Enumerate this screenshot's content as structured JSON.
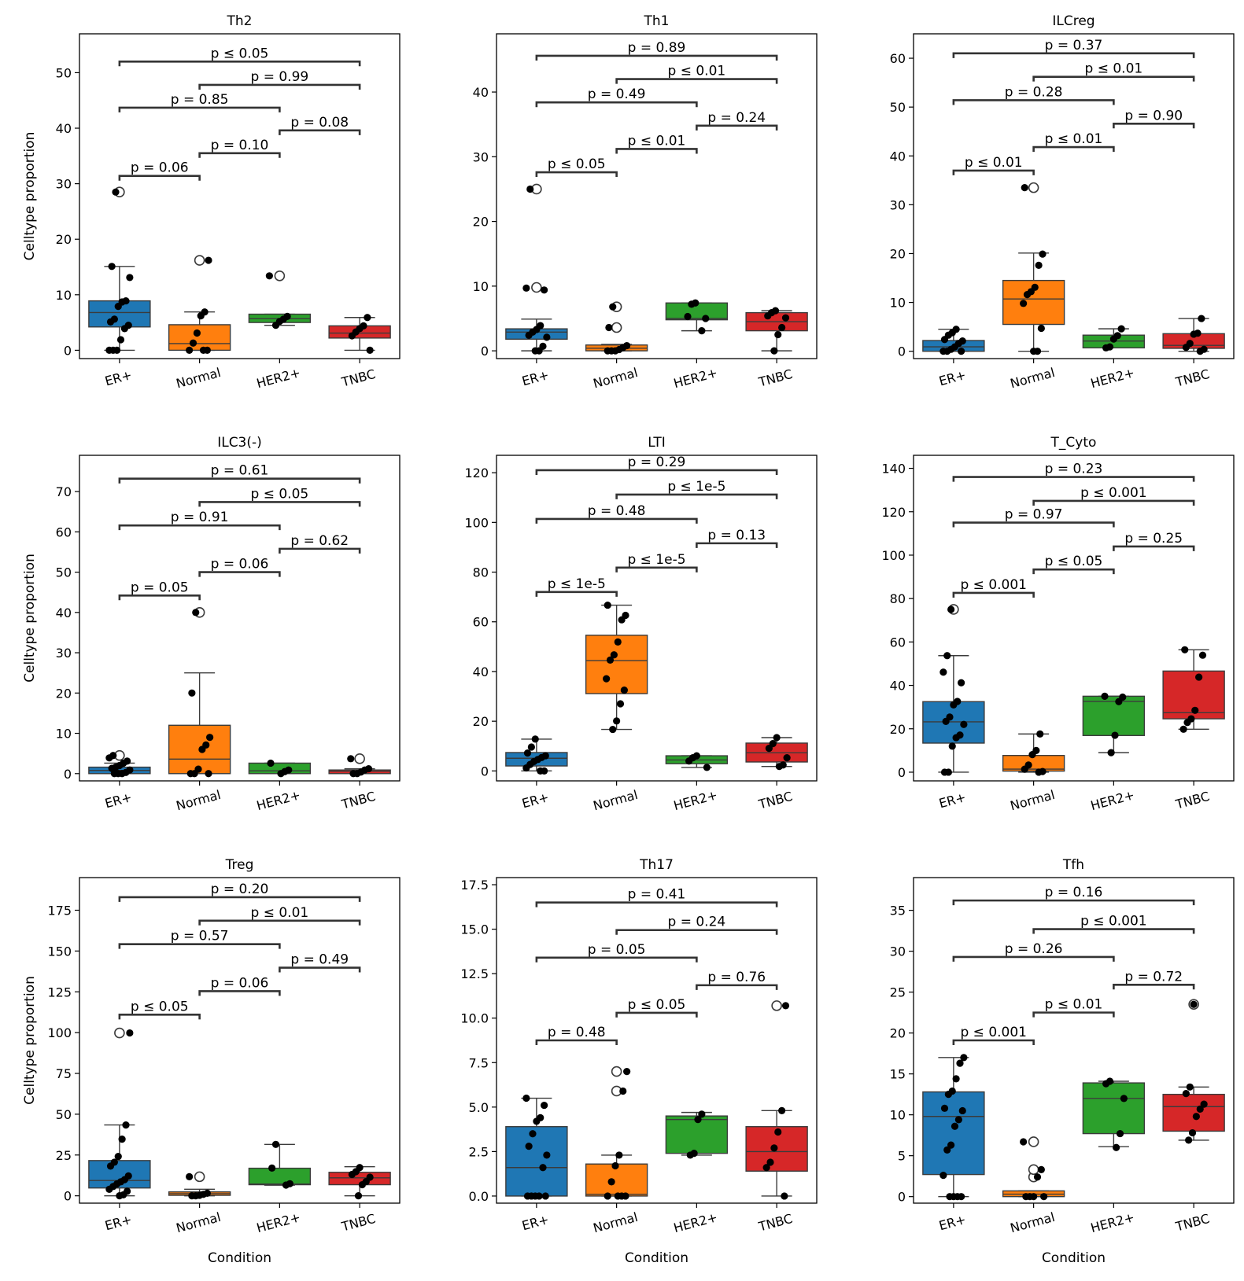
{
  "chart_data": {
    "type": "box",
    "rows": 3,
    "cols": 3,
    "categories": [
      "ER+",
      "Normal",
      "HER2+",
      "TNBC"
    ],
    "colors": {
      "ER+": "#1f77b4",
      "Normal": "#ff7f0e",
      "HER2+": "#2ca02c",
      "TNBC": "#d62728"
    },
    "xlabel": "Condition",
    "ylabel": "Celltype proportion",
    "pairs": [
      [
        0,
        3
      ],
      [
        1,
        3
      ],
      [
        0,
        2
      ],
      [
        2,
        3
      ],
      [
        1,
        2
      ],
      [
        0,
        1
      ]
    ],
    "panels": [
      {
        "title": "Th2",
        "ylim": [
          -1.5,
          57
        ],
        "yticks": [
          0,
          10,
          20,
          30,
          40,
          50
        ],
        "boxes": [
          {
            "q1": 4.2,
            "med": 6.8,
            "q3": 8.9,
            "whislo": 0,
            "whishi": 15.1,
            "fliers": [
              28.5
            ]
          },
          {
            "q1": 0,
            "med": 1.2,
            "q3": 4.6,
            "whislo": 0,
            "whishi": 6.9,
            "fliers": [
              16.2
            ]
          },
          {
            "q1": 5.0,
            "med": 5.7,
            "q3": 6.5,
            "whislo": 4.5,
            "whishi": 6.5,
            "fliers": [
              13.4
            ]
          },
          {
            "q1": 2.2,
            "med": 3.1,
            "q3": 4.4,
            "whislo": 0,
            "whishi": 5.9,
            "fliers": []
          }
        ],
        "points": [
          [
            0,
            0,
            0,
            1.9,
            3.9,
            4.5,
            5.1,
            5.6,
            7.9,
            8.7,
            8.9,
            13.1,
            15.1,
            28.5
          ],
          [
            0,
            0,
            0,
            1.3,
            3.1,
            6.2,
            6.9,
            16.2
          ],
          [
            4.5,
            5.2,
            5.6,
            6.1,
            13.4
          ],
          [
            0,
            2.6,
            3.3,
            3.9,
            4.4,
            5.9
          ]
        ],
        "p_values": [
          "p ≤ 0.05",
          "p = 0.99",
          "p = 0.85",
          "p = 0.08",
          "p = 0.10",
          "p = 0.06"
        ],
        "bracket_y": [
          52,
          47.8,
          43.7,
          39.6,
          35.5,
          31.4
        ]
      },
      {
        "title": "Th1",
        "ylim": [
          -1.2,
          49
        ],
        "yticks": [
          0,
          10,
          20,
          30,
          40
        ],
        "boxes": [
          {
            "q1": 1.8,
            "med": 2.9,
            "q3": 3.4,
            "whislo": 0,
            "whishi": 4.9,
            "fliers": [
              9.8,
              25.0
            ]
          },
          {
            "q1": 0,
            "med": 0.4,
            "q3": 0.9,
            "whislo": 0,
            "whishi": 1.0,
            "fliers": [
              3.6,
              6.8
            ]
          },
          {
            "q1": 4.8,
            "med": 5.0,
            "q3": 7.4,
            "whislo": 3.1,
            "whishi": 7.4,
            "fliers": []
          },
          {
            "q1": 3.1,
            "med": 4.5,
            "q3": 5.9,
            "whislo": 0,
            "whishi": 6.2,
            "fliers": []
          }
        ],
        "points": [
          [
            0,
            0,
            0.7,
            2.1,
            2.4,
            2.9,
            3.3,
            3.9,
            9.4,
            9.7,
            25.0
          ],
          [
            0,
            0,
            0,
            0.2,
            0.5,
            0.8,
            3.6,
            6.8
          ],
          [
            3.1,
            5.0,
            5.3,
            7.2,
            7.4
          ],
          [
            0,
            2.5,
            3.6,
            5.1,
            5.4,
            5.9,
            6.2
          ]
        ],
        "p_values": [
          "p = 0.89",
          "p ≤ 0.01",
          "p = 0.49",
          "p = 0.24",
          "p ≤ 0.01",
          "p ≤ 0.05"
        ],
        "bracket_y": [
          45.6,
          42,
          38.4,
          34.8,
          31.2,
          27.6
        ]
      },
      {
        "title": "ILCreg",
        "ylim": [
          -1.5,
          65
        ],
        "yticks": [
          0,
          10,
          20,
          30,
          40,
          50,
          60
        ],
        "boxes": [
          {
            "q1": 0,
            "med": 0.9,
            "q3": 2.2,
            "whislo": 0,
            "whishi": 4.5,
            "fliers": []
          },
          {
            "q1": 5.5,
            "med": 10.7,
            "q3": 14.5,
            "whislo": 0,
            "whishi": 20.1,
            "fliers": [
              33.5
            ]
          },
          {
            "q1": 0.7,
            "med": 2.1,
            "q3": 3.3,
            "whislo": 0.7,
            "whishi": 4.6,
            "fliers": []
          },
          {
            "q1": 0.6,
            "med": 1.2,
            "q3": 3.6,
            "whislo": 0,
            "whishi": 6.7,
            "fliers": []
          }
        ],
        "points": [
          [
            0,
            0,
            0,
            0.4,
            0.9,
            1.6,
            2.1,
            2.4,
            3.3,
            3.8,
            4.5
          ],
          [
            0,
            0,
            4.7,
            9.8,
            11.6,
            12.2,
            13.1,
            17.6,
            19.9,
            33.5
          ],
          [
            0.7,
            0.9,
            2.5,
            3.2,
            4.6
          ],
          [
            0,
            0.4,
            0.8,
            1.6,
            3.5,
            3.7,
            6.7
          ]
        ],
        "p_values": [
          "p = 0.37",
          "p ≤ 0.01",
          "p = 0.28",
          "p = 0.90",
          "p ≤ 0.01",
          "p ≤ 0.01"
        ],
        "bracket_y": [
          61,
          56.2,
          51.4,
          46.6,
          41.8,
          37
        ]
      },
      {
        "title": "ILC3(-)",
        "ylim": [
          -1.8,
          79
        ],
        "yticks": [
          0,
          10,
          20,
          30,
          40,
          50,
          60,
          70
        ],
        "boxes": [
          {
            "q1": 0,
            "med": 0.8,
            "q3": 1.6,
            "whislo": 0,
            "whishi": 2.6,
            "fliers": [
              4.5
            ]
          },
          {
            "q1": 0,
            "med": 3.6,
            "q3": 12.0,
            "whislo": 0,
            "whishi": 25.0,
            "fliers": [
              40.0
            ]
          },
          {
            "q1": 0,
            "med": 0.7,
            "q3": 2.6,
            "whislo": 0,
            "whishi": 2.6,
            "fliers": []
          },
          {
            "q1": 0,
            "med": 0.6,
            "q3": 0.9,
            "whislo": 0,
            "whishi": 1.2,
            "fliers": [
              3.7
            ]
          }
        ],
        "points": [
          [
            0,
            0,
            0,
            0.3,
            0.9,
            1.3,
            1.6,
            2.0,
            2.6,
            3.1,
            3.9,
            4.5
          ],
          [
            0,
            0,
            0,
            1.1,
            6.0,
            7.1,
            9.0,
            20.0,
            40.0
          ],
          [
            0,
            0.5,
            0.9,
            2.6
          ],
          [
            0,
            0,
            0.4,
            0.9,
            1.2,
            3.7
          ]
        ],
        "p_values": [
          "p = 0.61",
          "p ≤ 0.05",
          "p = 0.91",
          "p = 0.62",
          "p = 0.06",
          "p = 0.05"
        ],
        "bracket_y": [
          73.2,
          67.4,
          61.6,
          55.8,
          50,
          44.2
        ]
      },
      {
        "title": "LTI",
        "ylim": [
          -4,
          127
        ],
        "yticks": [
          0,
          20,
          40,
          60,
          80,
          100,
          120
        ],
        "boxes": [
          {
            "q1": 2.0,
            "med": 5.1,
            "q3": 7.4,
            "whislo": 0,
            "whishi": 12.8,
            "fliers": []
          },
          {
            "q1": 31.1,
            "med": 44.4,
            "q3": 54.6,
            "whislo": 16.7,
            "whishi": 66.7,
            "fliers": []
          },
          {
            "q1": 2.9,
            "med": 4.4,
            "q3": 6.1,
            "whislo": 1.4,
            "whishi": 6.1,
            "fliers": []
          },
          {
            "q1": 3.6,
            "med": 7.3,
            "q3": 11.2,
            "whislo": 1.8,
            "whishi": 13.4,
            "fliers": []
          }
        ],
        "points": [
          [
            0,
            0,
            1.2,
            2.6,
            3.8,
            4.6,
            5.4,
            6.1,
            7.2,
            9.6,
            12.8
          ],
          [
            16.7,
            20.1,
            27.0,
            32.5,
            37.1,
            44.6,
            46.7,
            51.9,
            60.8,
            62.6,
            66.7
          ],
          [
            1.4,
            4.0,
            5.3,
            6.1
          ],
          [
            1.8,
            2.4,
            5.3,
            9.1,
            11.0,
            13.4
          ]
        ],
        "p_values": [
          "p = 0.29",
          "p ≤ 1e-5",
          "p = 0.48",
          "p = 0.13",
          "p ≤ 1e-5",
          "p ≤ 1e-5"
        ],
        "bracket_y": [
          121,
          111.2,
          101.4,
          91.6,
          81.8,
          72
        ]
      },
      {
        "title": "T_Cyto",
        "ylim": [
          -4,
          146
        ],
        "yticks": [
          0,
          20,
          40,
          60,
          80,
          100,
          120,
          140
        ],
        "boxes": [
          {
            "q1": 13.4,
            "med": 23.2,
            "q3": 32.5,
            "whislo": 0,
            "whishi": 53.7,
            "fliers": [
              75.0
            ]
          },
          {
            "q1": 0.5,
            "med": 1.4,
            "q3": 7.7,
            "whislo": 0,
            "whishi": 17.6,
            "fliers": []
          },
          {
            "q1": 16.9,
            "med": 32.6,
            "q3": 35.0,
            "whislo": 9.0,
            "whishi": 35.0,
            "fliers": []
          },
          {
            "q1": 24.6,
            "med": 27.4,
            "q3": 46.6,
            "whislo": 19.8,
            "whishi": 56.4,
            "fliers": []
          }
        ],
        "points": [
          [
            0,
            0,
            12.0,
            15.9,
            17.1,
            22.0,
            23.4,
            25.4,
            31.0,
            32.6,
            41.2,
            46.1,
            53.7,
            75.0
          ],
          [
            0,
            0.3,
            1.4,
            3.3,
            8.1,
            10.0,
            17.6
          ],
          [
            9.0,
            17.0,
            32.5,
            34.6,
            35.0
          ],
          [
            19.8,
            22.9,
            24.6,
            28.5,
            43.8,
            53.9,
            56.4
          ]
        ],
        "p_values": [
          "p = 0.23",
          "p ≤ 0.001",
          "p = 0.97",
          "p = 0.25",
          "p ≤ 0.05",
          "p ≤ 0.001"
        ],
        "bracket_y": [
          136,
          125,
          115,
          104,
          93.4,
          82.6
        ]
      },
      {
        "title": "Treg",
        "ylim": [
          -4.5,
          195
        ],
        "yticks": [
          0,
          25,
          50,
          75,
          100,
          125,
          150,
          175
        ],
        "boxes": [
          {
            "q1": 4.8,
            "med": 9.4,
            "q3": 21.6,
            "whislo": 0,
            "whishi": 43.4,
            "fliers": [
              99.8
            ]
          },
          {
            "q1": 0.3,
            "med": 1.3,
            "q3": 2.4,
            "whislo": 0,
            "whishi": 4.0,
            "fliers": [
              11.7
            ]
          },
          {
            "q1": 6.8,
            "med": 7.2,
            "q3": 16.9,
            "whislo": 6.5,
            "whishi": 31.5,
            "fliers": []
          },
          {
            "q1": 6.8,
            "med": 11.0,
            "q3": 14.4,
            "whislo": 0,
            "whishi": 17.8,
            "fliers": []
          }
        ],
        "points": [
          [
            0,
            0.6,
            2.8,
            4.0,
            5.7,
            7.3,
            8.6,
            9.9,
            12.2,
            18.2,
            20.6,
            24.1,
            34.7,
            43.4,
            99.8
          ],
          [
            0,
            0,
            0.3,
            0.9,
            1.6,
            11.7
          ],
          [
            6.6,
            7.4,
            17.0,
            31.5
          ],
          [
            0,
            6.8,
            8.7,
            11.4,
            13.1,
            14.8,
            17.3
          ]
        ],
        "p_values": [
          "p = 0.20",
          "p ≤ 0.01",
          "p = 0.57",
          "p = 0.49",
          "p = 0.06",
          "p ≤ 0.05"
        ],
        "bracket_y": [
          183,
          168.6,
          154.2,
          139.8,
          125.4,
          111
        ]
      },
      {
        "title": "Th17",
        "ylim": [
          -0.4,
          17.9
        ],
        "yticks": [
          0.0,
          2.5,
          5.0,
          7.5,
          10.0,
          12.5,
          15.0,
          17.5
        ],
        "ytick_labels": [
          "0.0",
          "2.5",
          "5.0",
          "7.5",
          "10.0",
          "12.5",
          "15.0",
          "17.5"
        ],
        "boxes": [
          {
            "q1": 0,
            "med": 1.6,
            "q3": 3.9,
            "whislo": 0,
            "whishi": 5.5,
            "fliers": []
          },
          {
            "q1": 0,
            "med": 0.1,
            "q3": 1.8,
            "whislo": 0,
            "whishi": 2.3,
            "fliers": [
              5.9,
              7.0
            ]
          },
          {
            "q1": 2.4,
            "med": 4.3,
            "q3": 4.5,
            "whislo": 2.3,
            "whishi": 4.7,
            "fliers": []
          },
          {
            "q1": 1.4,
            "med": 2.5,
            "q3": 3.9,
            "whislo": 0,
            "whishi": 4.8,
            "fliers": [
              10.7
            ]
          }
        ],
        "points": [
          [
            0,
            0,
            0,
            0,
            0,
            1.6,
            2.3,
            2.8,
            3.5,
            4.2,
            4.4,
            5.1,
            5.5
          ],
          [
            0,
            0,
            0,
            0,
            0.8,
            1.7,
            2.3,
            5.9,
            7.0
          ],
          [
            2.3,
            2.4,
            4.3,
            4.6
          ],
          [
            0,
            1.6,
            1.9,
            2.7,
            3.6,
            4.8,
            10.7
          ]
        ],
        "p_values": [
          "p = 0.41",
          "p = 0.24",
          "p = 0.05",
          "p = 0.76",
          "p ≤ 0.05",
          "p = 0.48"
        ],
        "bracket_y": [
          16.5,
          14.95,
          13.4,
          11.85,
          10.3,
          8.75
        ]
      },
      {
        "title": "Tfh",
        "ylim": [
          -0.8,
          39
        ],
        "yticks": [
          0,
          5,
          10,
          15,
          20,
          25,
          30,
          35
        ],
        "boxes": [
          {
            "q1": 2.7,
            "med": 9.8,
            "q3": 12.8,
            "whislo": 0,
            "whishi": 17.0,
            "fliers": []
          },
          {
            "q1": 0,
            "med": 0.3,
            "q3": 0.7,
            "whislo": 0,
            "whishi": 0.7,
            "fliers": [
              2.4,
              3.3,
              6.7
            ]
          },
          {
            "q1": 7.7,
            "med": 12.0,
            "q3": 13.9,
            "whislo": 6.1,
            "whishi": 14.1,
            "fliers": []
          },
          {
            "q1": 8.0,
            "med": 11.0,
            "q3": 12.5,
            "whislo": 6.9,
            "whishi": 13.4,
            "fliers": [
              23.5
            ]
          }
        ],
        "points": [
          [
            0,
            0,
            0,
            0,
            2.6,
            5.7,
            6.3,
            8.6,
            9.4,
            10.5,
            10.8,
            12.5,
            12.9,
            14.4,
            16.3,
            17.0
          ],
          [
            0,
            0,
            0,
            0,
            2.4,
            3.3,
            6.7
          ],
          [
            6.0,
            7.7,
            12.0,
            13.8,
            14.1
          ],
          [
            6.9,
            7.8,
            9.8,
            10.7,
            11.3,
            12.6,
            13.4,
            23.5
          ]
        ],
        "p_values": [
          "p = 0.16",
          "p ≤ 0.001",
          "p = 0.26",
          "p = 0.72",
          "p ≤ 0.01",
          "p ≤ 0.001"
        ],
        "bracket_y": [
          36.2,
          32.7,
          29.3,
          25.9,
          22.5,
          19.1
        ]
      }
    ]
  }
}
